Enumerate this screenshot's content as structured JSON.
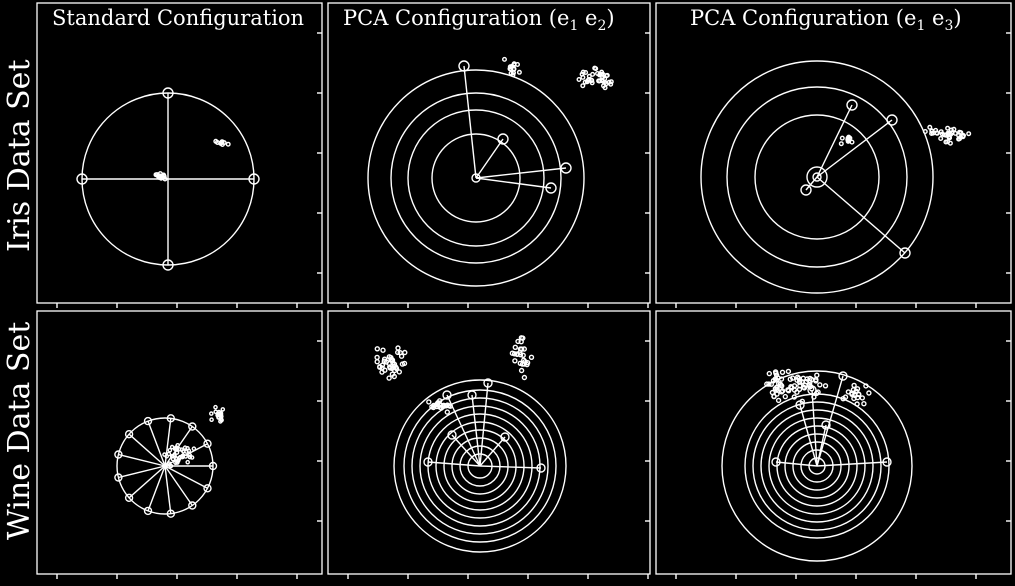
{
  "titles": {
    "standard": "Standard Configuration",
    "pca12": "PCA Configuration (e",
    "pca12_i": "1",
    "pca12_mid": "  e",
    "pca12_j": "2",
    "pca12_end": ")",
    "pca13": "PCA Configuration (e",
    "pca13_i": "1",
    "pca13_mid": "  e",
    "pca13_j": "3",
    "pca13_end": ")"
  },
  "rows": {
    "iris": "Iris Data Set",
    "wine": "Wine Data Set"
  },
  "style": {
    "background": "#000000",
    "stroke": "#ffffff"
  }
}
